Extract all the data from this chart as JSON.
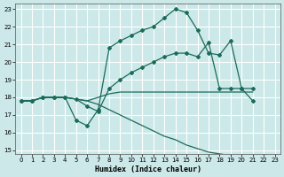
{
  "xlabel": "Humidex (Indice chaleur)",
  "background_color": "#cce8e8",
  "grid_color": "#ffffff",
  "line_color": "#1a6b5a",
  "xlim": [
    -0.5,
    23.5
  ],
  "ylim": [
    14.8,
    23.3
  ],
  "yticks": [
    15,
    16,
    17,
    18,
    19,
    20,
    21,
    22,
    23
  ],
  "xticks": [
    0,
    1,
    2,
    3,
    4,
    5,
    6,
    7,
    8,
    9,
    10,
    11,
    12,
    13,
    14,
    15,
    16,
    17,
    18,
    19,
    20,
    21,
    22,
    23
  ],
  "line1_x": [
    0,
    1,
    2,
    3,
    4,
    5,
    6,
    7,
    8,
    9,
    10,
    11,
    12,
    13,
    14,
    15,
    16,
    17,
    18,
    19,
    20,
    21
  ],
  "line1_y": [
    17.8,
    17.8,
    18.0,
    18.0,
    18.0,
    16.7,
    16.4,
    17.3,
    20.8,
    21.2,
    21.5,
    21.8,
    22.0,
    22.5,
    23.0,
    22.8,
    21.8,
    20.5,
    20.4,
    21.2,
    18.5,
    17.8
  ],
  "line2_x": [
    0,
    1,
    2,
    3,
    4,
    5,
    6,
    7,
    8,
    9,
    10,
    11,
    12,
    13,
    14,
    15,
    16,
    17,
    18,
    19,
    20,
    21
  ],
  "line2_y": [
    17.8,
    17.8,
    18.0,
    18.0,
    18.0,
    17.9,
    17.5,
    17.2,
    18.5,
    19.0,
    19.4,
    19.7,
    20.0,
    20.3,
    20.5,
    20.5,
    20.3,
    21.1,
    18.5,
    18.5,
    18.5,
    18.5
  ],
  "line3_x": [
    0,
    1,
    2,
    3,
    4,
    5,
    6,
    7,
    8,
    9,
    10,
    11,
    12,
    13,
    14,
    15,
    16,
    17,
    18,
    19,
    20,
    21
  ],
  "line3_y": [
    17.8,
    17.8,
    18.0,
    18.0,
    18.0,
    17.9,
    17.8,
    18.0,
    18.2,
    18.3,
    18.3,
    18.3,
    18.3,
    18.3,
    18.3,
    18.3,
    18.3,
    18.3,
    18.3,
    18.3,
    18.3,
    18.3
  ],
  "line4_x": [
    0,
    1,
    2,
    3,
    4,
    5,
    6,
    7,
    8,
    9,
    10,
    11,
    12,
    13,
    14,
    15,
    16,
    17,
    18,
    19,
    20,
    21,
    22,
    23
  ],
  "line4_y": [
    17.8,
    17.8,
    18.0,
    18.0,
    18.0,
    17.9,
    17.8,
    17.6,
    17.3,
    17.0,
    16.7,
    16.4,
    16.1,
    15.8,
    15.6,
    15.3,
    15.1,
    14.9,
    14.8,
    14.7,
    14.6,
    14.6,
    14.6,
    14.5
  ],
  "tick_fontsize": 5,
  "xlabel_fontsize": 6
}
